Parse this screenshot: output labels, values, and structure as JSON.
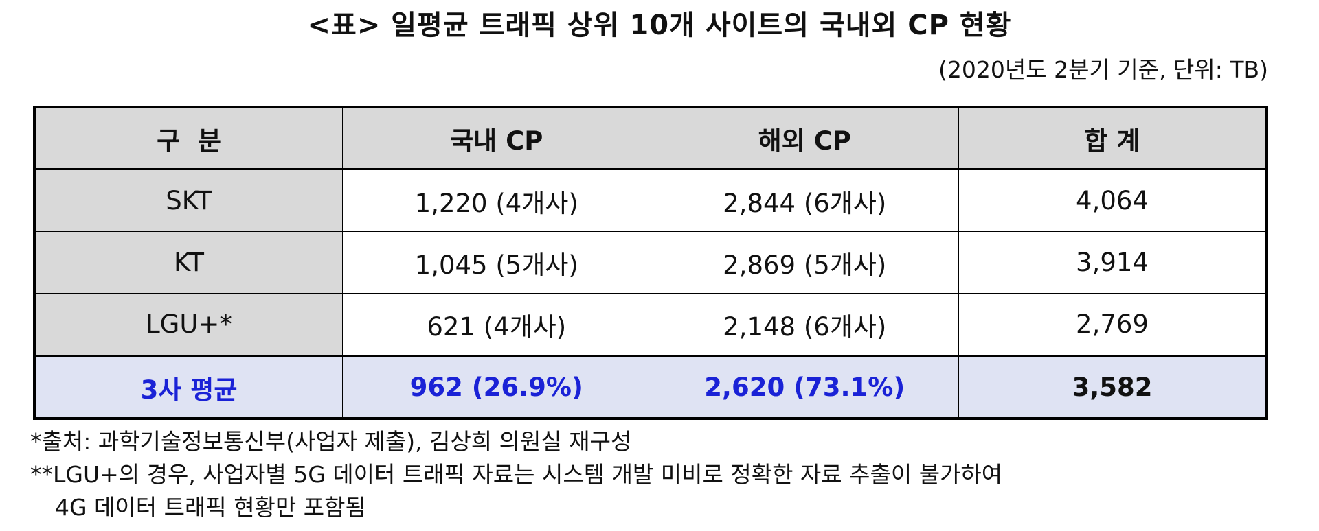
{
  "title": "<표> 일평균 트래픽 상위 10개 사이트의 국내외 CP 현황",
  "unit_note": "(2020년도 2분기 기준, 단위: TB)",
  "table": {
    "headers": [
      "구  분",
      "국내 CP",
      "해외 CP",
      "합 계"
    ],
    "rows": [
      {
        "label": "SKT",
        "domestic": "1,220 (4개사)",
        "foreign": "2,844 (6개사)",
        "total": "4,064"
      },
      {
        "label": "KT",
        "domestic": "1,045 (5개사)",
        "foreign": "2,869 (5개사)",
        "total": "3,914"
      },
      {
        "label": "LGU+*",
        "domestic": "621 (4개사)",
        "foreign": "2,148 (6개사)",
        "total": "2,769"
      }
    ],
    "average": {
      "label": "3사 평균",
      "domestic": "962 (26.9%)",
      "foreign": "2,620 (73.1%)",
      "total": "3,582"
    }
  },
  "notes": [
    "*출처: 과학기술정보통신부(사업자 제출), 김상희 의원실 재구성",
    "**LGU+의 경우, 사업자별 5G 데이터 트래픽 자료는 시스템 개발 미비로 정확한 자료 추출이 불가하여",
    "4G 데이터 트래픽 현황만 포함됨"
  ],
  "colors": {
    "header_bg": "#d9d9d9",
    "average_row_bg": "#dfe3f3",
    "average_text": "#1a22d6"
  }
}
